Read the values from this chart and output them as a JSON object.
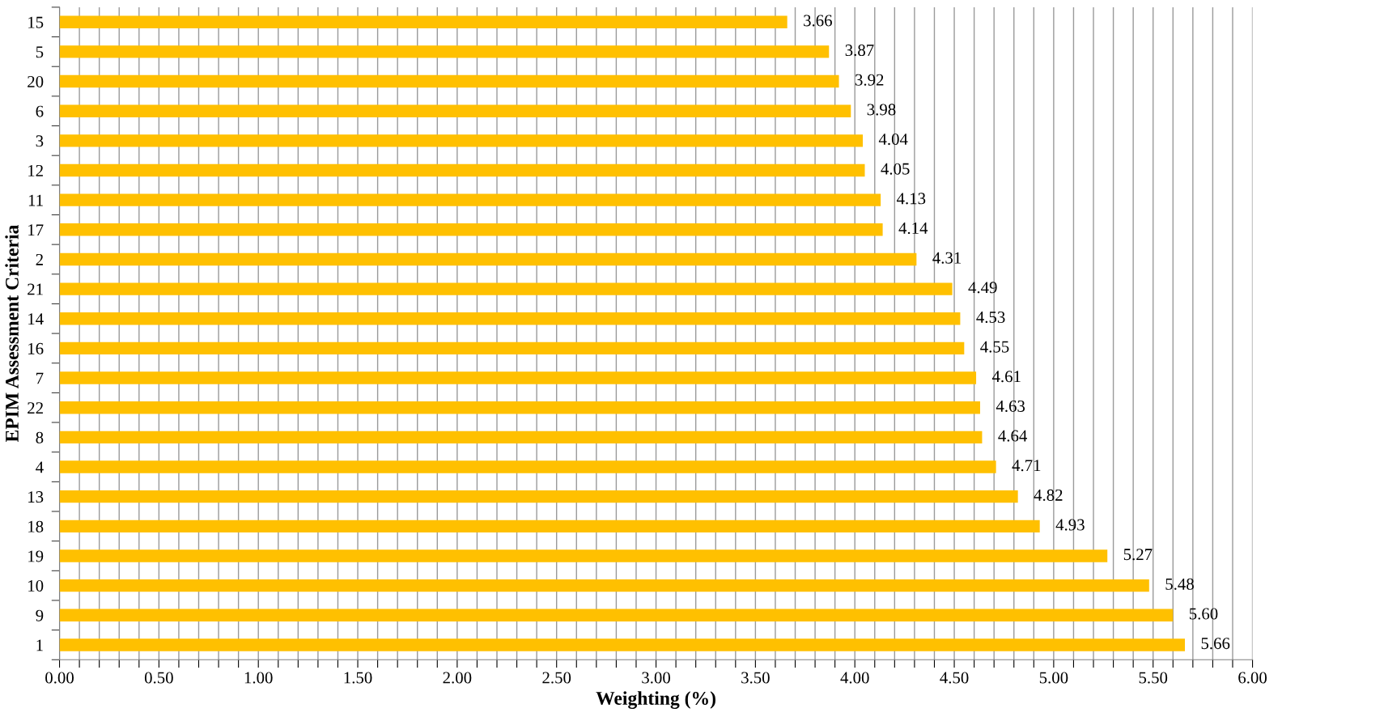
{
  "chart_data": {
    "type": "bar",
    "orientation": "horizontal",
    "xlabel": "Weighting (%)",
    "ylabel": "EPIM Assessment Criteria",
    "categories": [
      "15",
      "5",
      "20",
      "6",
      "3",
      "12",
      "11",
      "17",
      "2",
      "21",
      "14",
      "16",
      "7",
      "22",
      "8",
      "4",
      "13",
      "18",
      "19",
      "10",
      "9",
      "1"
    ],
    "values": [
      3.66,
      3.87,
      3.92,
      3.98,
      4.04,
      4.05,
      4.13,
      4.14,
      4.31,
      4.49,
      4.53,
      4.55,
      4.61,
      4.63,
      4.64,
      4.71,
      4.82,
      4.93,
      5.27,
      5.48,
      5.6,
      5.66
    ],
    "value_labels": [
      "3.66",
      "3.87",
      "3.92",
      "3.98",
      "4.04",
      "4.05",
      "4.13",
      "4.14",
      "4.31",
      "4.49",
      "4.53",
      "4.55",
      "4.61",
      "4.63",
      "4.64",
      "4.71",
      "4.82",
      "4.93",
      "5.27",
      "5.48",
      "5.60",
      "5.66"
    ],
    "color": "#ffc000",
    "xlim": [
      0,
      6
    ],
    "xticks": [
      {
        "value": 0,
        "label": "0.00"
      },
      {
        "value": 0.1,
        "label": null
      },
      {
        "value": 0.2,
        "label": null
      },
      {
        "value": 0.3,
        "label": null
      },
      {
        "value": 0.4,
        "label": null
      },
      {
        "value": 0.5,
        "label": "0.50"
      },
      {
        "value": 0.6,
        "label": null
      },
      {
        "value": 0.7,
        "label": null
      },
      {
        "value": 0.8,
        "label": null
      },
      {
        "value": 0.9,
        "label": null
      },
      {
        "value": 1,
        "label": "1.00"
      },
      {
        "value": 1.1,
        "label": null
      },
      {
        "value": 1.2,
        "label": null
      },
      {
        "value": 1.3,
        "label": null
      },
      {
        "value": 1.4,
        "label": null
      },
      {
        "value": 1.5,
        "label": "1.50"
      },
      {
        "value": 1.6,
        "label": null
      },
      {
        "value": 1.7,
        "label": null
      },
      {
        "value": 1.8,
        "label": null
      },
      {
        "value": 1.9,
        "label": null
      },
      {
        "value": 2,
        "label": "2.00"
      },
      {
        "value": 2.1,
        "label": null
      },
      {
        "value": 2.2,
        "label": null
      },
      {
        "value": 2.3,
        "label": null
      },
      {
        "value": 2.4,
        "label": null
      },
      {
        "value": 2.5,
        "label": "2.50"
      },
      {
        "value": 2.6,
        "label": null
      },
      {
        "value": 2.7,
        "label": null
      },
      {
        "value": 2.8,
        "label": null
      },
      {
        "value": 2.9,
        "label": null
      },
      {
        "value": 3,
        "label": "3.00"
      },
      {
        "value": 3.1,
        "label": null
      },
      {
        "value": 3.2,
        "label": null
      },
      {
        "value": 3.3,
        "label": null
      },
      {
        "value": 3.4,
        "label": null
      },
      {
        "value": 3.5,
        "label": "3.50"
      },
      {
        "value": 3.6,
        "label": null
      },
      {
        "value": 3.7,
        "label": null
      },
      {
        "value": 3.8,
        "label": null
      },
      {
        "value": 3.9,
        "label": null
      },
      {
        "value": 4,
        "label": "4.00"
      },
      {
        "value": 4.1,
        "label": null
      },
      {
        "value": 4.2,
        "label": null
      },
      {
        "value": 4.3,
        "label": null
      },
      {
        "value": 4.4,
        "label": null
      },
      {
        "value": 4.5,
        "label": "4.50"
      },
      {
        "value": 4.6,
        "label": null
      },
      {
        "value": 4.7,
        "label": null
      },
      {
        "value": 4.8,
        "label": null
      },
      {
        "value": 4.9,
        "label": null
      },
      {
        "value": 5,
        "label": "5.00"
      },
      {
        "value": 5.1,
        "label": null
      },
      {
        "value": 5.2,
        "label": null
      },
      {
        "value": 5.3,
        "label": null
      },
      {
        "value": 5.4,
        "label": null
      },
      {
        "value": 5.5,
        "label": "5.50"
      },
      {
        "value": 5.6,
        "label": null
      },
      {
        "value": 5.7,
        "label": null
      },
      {
        "value": 5.8,
        "label": null
      },
      {
        "value": 5.9,
        "label": null
      },
      {
        "value": 6,
        "label": "6.00"
      }
    ],
    "grid": "x",
    "legend": false
  }
}
